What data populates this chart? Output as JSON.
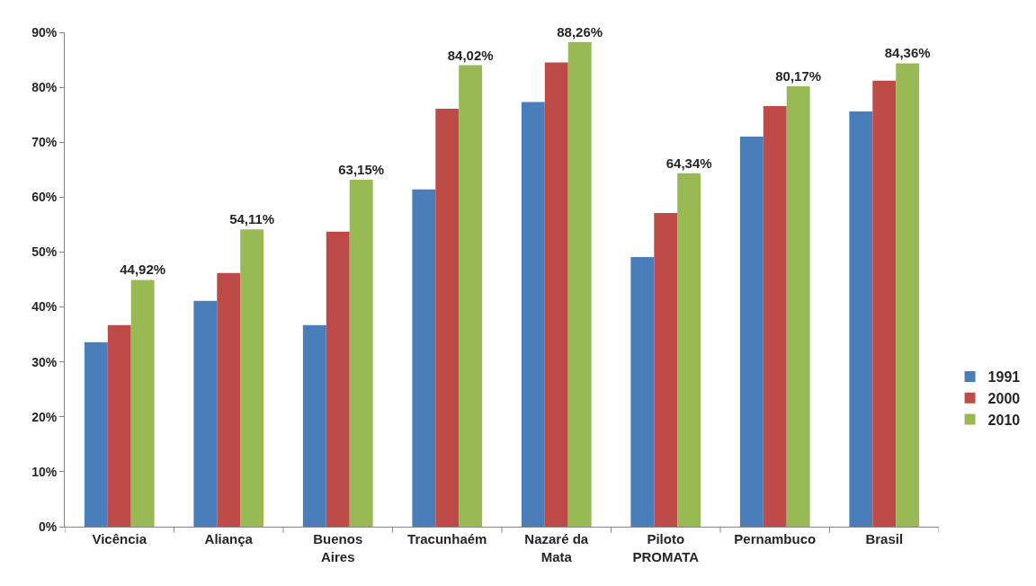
{
  "chart_data": {
    "type": "bar",
    "categories": [
      "Vicência",
      "Aliança",
      "Buenos Aires",
      "Tracunhaém",
      "Nazaré da Mata",
      "Piloto PROMATA",
      "Pernambuco",
      "Brasil"
    ],
    "series": [
      {
        "name": "1991",
        "color": "#4a7ebb",
        "values": [
          33.6,
          41.1,
          36.7,
          61.4,
          77.3,
          49.1,
          71.0,
          75.6
        ]
      },
      {
        "name": "2000",
        "color": "#be4b48",
        "values": [
          36.7,
          46.2,
          53.7,
          76.1,
          84.5,
          57.1,
          76.6,
          81.2
        ]
      },
      {
        "name": "2010",
        "color": "#98b954",
        "values": [
          44.92,
          54.11,
          63.15,
          84.02,
          88.26,
          64.34,
          80.17,
          84.36
        ],
        "value_labels": [
          "44,92%",
          "54,11%",
          "63,15%",
          "84,02%",
          "88,26%",
          "64,34%",
          "80,17%",
          "84,36%"
        ]
      }
    ],
    "ylim": [
      0,
      90
    ],
    "yticks": [
      {
        "value": 0,
        "label": "0%"
      },
      {
        "value": 10,
        "label": "10%"
      },
      {
        "value": 20,
        "label": "20%"
      },
      {
        "value": 30,
        "label": "30%"
      },
      {
        "value": 40,
        "label": "40%"
      },
      {
        "value": 50,
        "label": "50%"
      },
      {
        "value": 60,
        "label": "60%"
      },
      {
        "value": 70,
        "label": "70%"
      },
      {
        "value": 80,
        "label": "80%"
      },
      {
        "value": 90,
        "label": "90%"
      }
    ],
    "legend": "right"
  }
}
